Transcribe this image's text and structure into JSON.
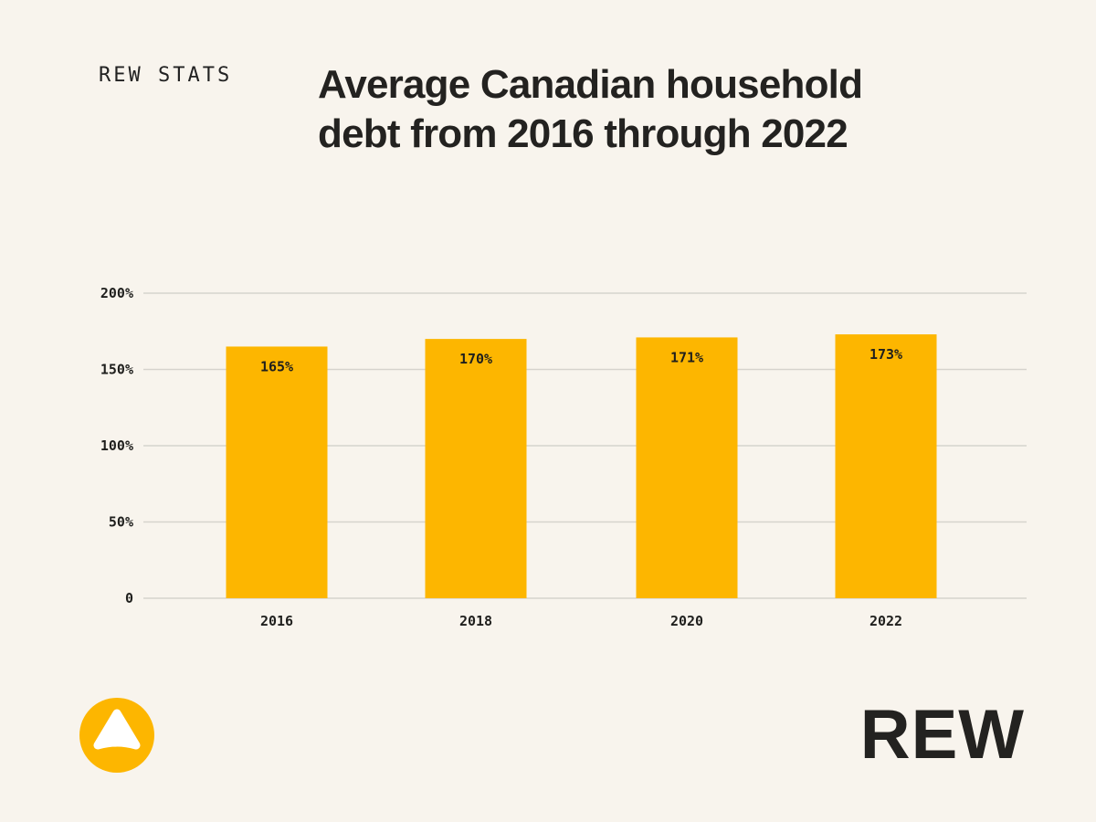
{
  "header": {
    "kicker": "REW STATS",
    "title": "Average Canadian household debt from 2016 through 2022"
  },
  "brand": {
    "wordmark": "REW",
    "logo_icon": "rew-triangle-logo-icon",
    "accent_color": "#fdb600"
  },
  "chart_data": {
    "type": "bar",
    "categories": [
      "2016",
      "2018",
      "2020",
      "2022"
    ],
    "values": [
      165,
      170,
      171,
      173
    ],
    "value_labels": [
      "165%",
      "170%",
      "171%",
      "173%"
    ],
    "y_ticks": [
      {
        "value": 0,
        "label": "0"
      },
      {
        "value": 50,
        "label": "50%"
      },
      {
        "value": 100,
        "label": "100%"
      },
      {
        "value": 150,
        "label": "150%"
      },
      {
        "value": 200,
        "label": "200%"
      }
    ],
    "ylim": [
      0,
      200
    ],
    "grid": true,
    "legend": "none",
    "bar_color": "#fdb600",
    "grid_color": "#d6d3cd"
  }
}
